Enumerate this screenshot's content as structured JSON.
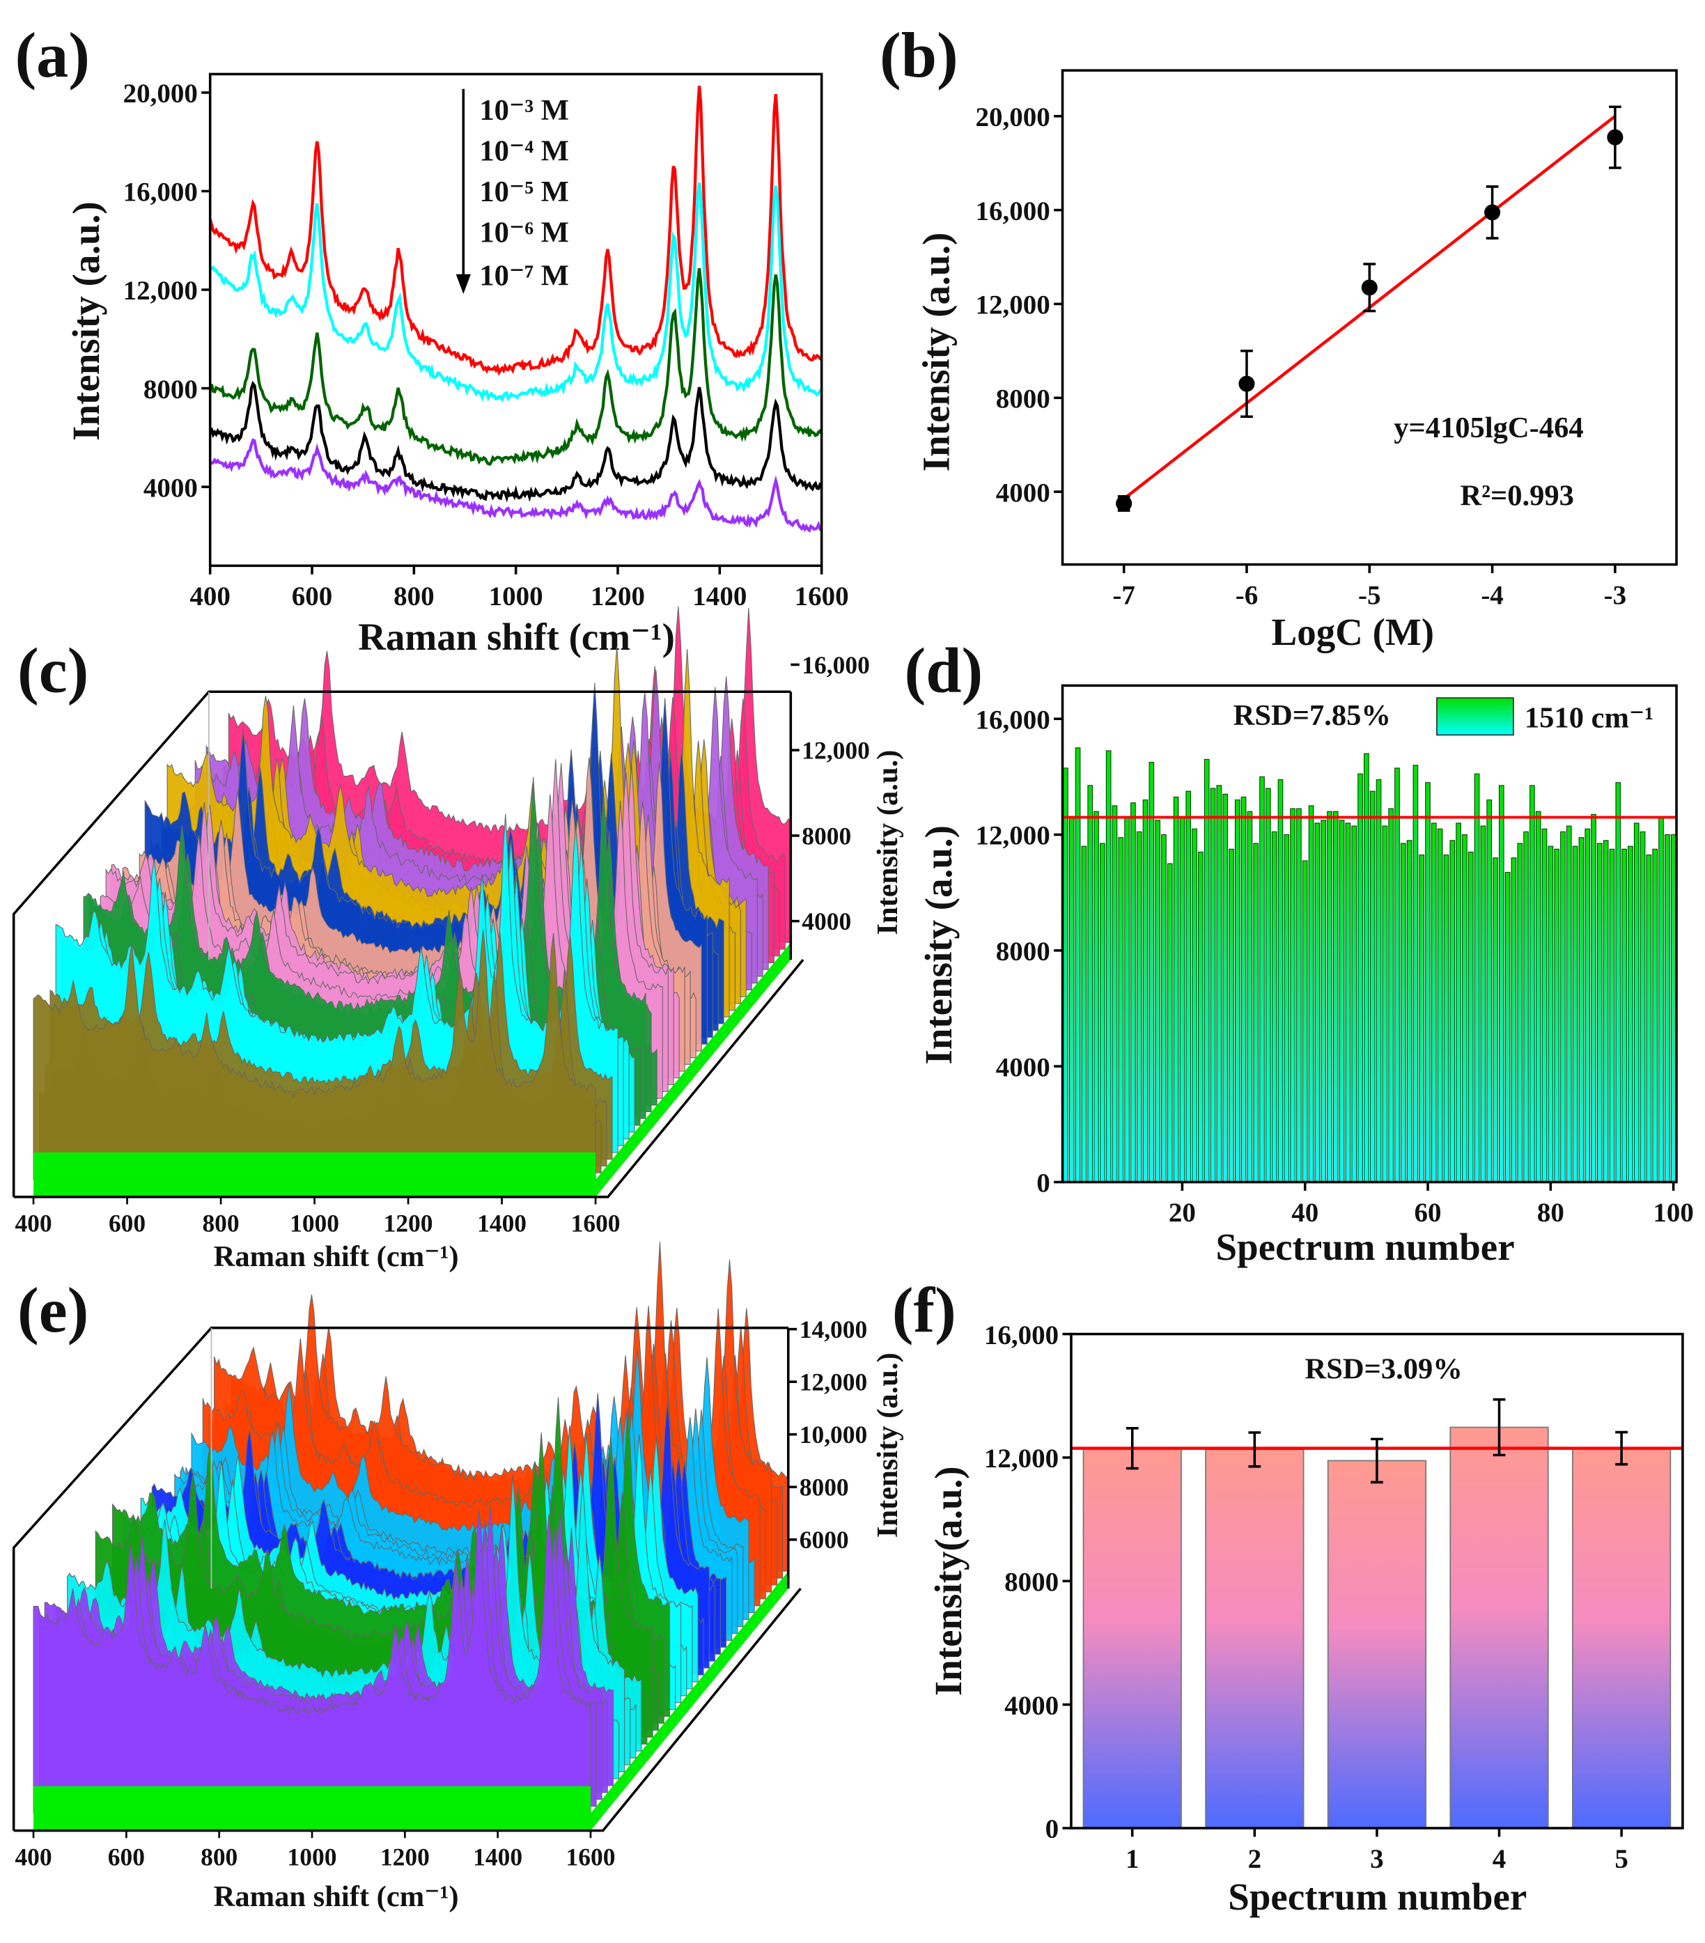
{
  "panels": {
    "a": {
      "label": "(a)"
    },
    "b": {
      "label": "(b)"
    },
    "c": {
      "label": "(c)"
    },
    "d": {
      "label": "(d)"
    },
    "e": {
      "label": "(e)"
    },
    "f": {
      "label": "(f)"
    }
  },
  "chart_data": [
    {
      "id": "a",
      "type": "line",
      "xlabel": "Raman shift (cm⁻¹)",
      "ylabel": "Intensity (a.u.)",
      "xlim": [
        400,
        1600
      ],
      "ylim": [
        800,
        20750
      ],
      "xticks": [
        400,
        600,
        800,
        1000,
        1200,
        1400,
        1600
      ],
      "xtick_labels": [
        "400",
        "600",
        "800",
        "1000",
        "1200",
        "1400",
        "1600"
      ],
      "yticks": [
        4000,
        8000,
        12000,
        16000,
        20000
      ],
      "ytick_labels": [
        "4000",
        "8000",
        "12,000",
        "16,000",
        "20,000"
      ],
      "legend": [
        "10⁻³ M",
        "10⁻⁴ M",
        "10⁻⁵ M",
        "10⁻⁶ M",
        "10⁻⁷ M"
      ],
      "legend_placement": "top-center with downward arrow",
      "peak_centers": [
        485,
        560,
        610,
        705,
        770,
        1120,
        1180,
        1310,
        1360,
        1510
      ],
      "baseline_x": [
        400,
        500,
        650,
        800,
        950,
        1100,
        1250,
        1450,
        1600
      ],
      "series": [
        {
          "name": "10⁻³ M",
          "color": "#ff0000",
          "baseline": [
            14500,
            12500,
            11000,
            10000,
            8700,
            9000,
            9100,
            8900,
            9000
          ],
          "peak_heights": [
            2500,
            1200,
            6500,
            1300,
            3300,
            1200,
            4300,
            7500,
            10800,
            10800
          ]
        },
        {
          "name": "10⁻⁴ M",
          "color": "#00ffff",
          "baseline": [
            12800,
            11000,
            9800,
            8800,
            7600,
            7900,
            8000,
            7700,
            7700
          ],
          "peak_heights": [
            2100,
            800,
            5200,
            1000,
            2600,
            800,
            3300,
            6000,
            8200,
            8600
          ]
        },
        {
          "name": "10⁻⁵ M",
          "color": "#006400",
          "baseline": [
            8000,
            7000,
            6400,
            5800,
            5000,
            5400,
            5800,
            5800,
            6000
          ],
          "peak_heights": [
            2500,
            600,
            3500,
            1000,
            2000,
            900,
            2800,
            5000,
            6700,
            6800
          ]
        },
        {
          "name": "10⁻⁶ M",
          "color": "#000000",
          "baseline": [
            6200,
            5300,
            4600,
            4100,
            3600,
            3800,
            4100,
            4000,
            3900
          ],
          "peak_heights": [
            2800,
            300,
            2500,
            1500,
            1100,
            500,
            1500,
            2500,
            3800,
            3500
          ]
        },
        {
          "name": "10⁻⁷ M",
          "color": "#9b30ff",
          "baseline": [
            5000,
            4500,
            4100,
            3700,
            3000,
            2900,
            2800,
            2500,
            2300
          ],
          "peak_heights": [
            1200,
            200,
            1200,
            400,
            500,
            300,
            600,
            1000,
            1500,
            1700
          ]
        }
      ]
    },
    {
      "id": "b",
      "type": "scatter",
      "xlabel": "LogC (M)",
      "ylabel": "Intensity (a.u.)",
      "xlim": [
        -7.5,
        -2.5
      ],
      "ylim": [
        900,
        21950
      ],
      "xticks": [
        -7,
        -6,
        -5,
        -4,
        -3
      ],
      "xtick_labels": [
        "-7",
        "-6",
        "-5",
        "-4",
        "-3"
      ],
      "yticks": [
        4000,
        8000,
        12000,
        16000,
        20000
      ],
      "ytick_labels": [
        "4000",
        "8000",
        "12,000",
        "16,000",
        "20,000"
      ],
      "x": [
        -7,
        -6,
        -5,
        -4,
        -3
      ],
      "y": [
        3500,
        8600,
        12700,
        15900,
        19100
      ],
      "yerr": [
        300,
        1400,
        1000,
        1100,
        1300
      ],
      "fit_line": {
        "x": [
          -7,
          -3
        ],
        "y": [
          3700,
          20000
        ],
        "color": "#ff0000"
      },
      "equation": "y=4105lgC-464",
      "r_squared": "R²=0.993"
    },
    {
      "id": "c",
      "type": "3d-waterfall",
      "xlabel": "Raman shift (cm⁻¹)",
      "zlabel": "Intensity (a.u.)",
      "xlim": [
        400,
        1600
      ],
      "zlim": [
        3000,
        16000
      ],
      "xticks": [
        400,
        600,
        800,
        1000,
        1200,
        1400,
        1600
      ],
      "xtick_labels": [
        "400",
        "600",
        "800",
        "1000",
        "1200",
        "1400",
        "1600"
      ],
      "zticks": [
        4000,
        8000,
        12000,
        16000
      ],
      "ztick_labels": [
        "4000",
        "8000",
        "12,000",
        "16,000"
      ],
      "colors": [
        "#8a7a20",
        "#00ffff",
        "#1a9a3a",
        "#f08cd0",
        "#f0a090",
        "#0a40c0",
        "#e0b000",
        "#b060e0",
        "#ff2a80"
      ]
    },
    {
      "id": "d",
      "type": "bar",
      "xlabel": "Spectrum number",
      "ylabel": "Intensity (a.u.)",
      "xlim": [
        0.5,
        100.5
      ],
      "ylim": [
        0,
        17150
      ],
      "xticks": [
        20,
        40,
        60,
        80,
        100
      ],
      "xtick_labels": [
        "20",
        "40",
        "60",
        "80",
        "100"
      ],
      "yticks": [
        0,
        4000,
        8000,
        12000,
        16000
      ],
      "ytick_labels": [
        "0",
        "4000",
        "8000",
        "12,000",
        "16,000"
      ],
      "legend": "1510 cm⁻¹",
      "legend_placement": "top-right",
      "annotation": "RSD=7.85%",
      "mean_line": 12600,
      "values": [
        14300,
        12600,
        15000,
        11600,
        13700,
        12800,
        11700,
        14900,
        13000,
        11900,
        12600,
        13100,
        12100,
        13200,
        14500,
        12500,
        12000,
        11000,
        13300,
        12600,
        13500,
        12200,
        11400,
        14600,
        13600,
        13700,
        13400,
        11500,
        13200,
        13300,
        12800,
        11700,
        14000,
        13600,
        12100,
        13900,
        12000,
        12900,
        12900,
        11100,
        13000,
        12400,
        12500,
        12800,
        12800,
        12500,
        12400,
        12300,
        14100,
        14800,
        13500,
        13900,
        12300,
        12900,
        14300,
        11700,
        11800,
        14400,
        11300,
        13800,
        12400,
        12200,
        11300,
        11800,
        12400,
        12000,
        11400,
        14100,
        12300,
        13200,
        11200,
        13700,
        10700,
        11200,
        11700,
        12100,
        13700,
        12800,
        12200,
        11600,
        11500,
        12100,
        12300,
        11600,
        11900,
        12200,
        12700,
        11700,
        11800,
        11500,
        13800,
        11500,
        11600,
        12400,
        12100,
        11300,
        11500,
        12600,
        12000,
        12000
      ]
    },
    {
      "id": "e",
      "type": "3d-waterfall",
      "xlabel": "Raman shift (cm⁻¹)",
      "zlabel": "Intensity (a.u.)",
      "xlim": [
        400,
        1600
      ],
      "zlim": [
        4800,
        14000
      ],
      "xticks": [
        400,
        600,
        800,
        1000,
        1200,
        1400,
        1600
      ],
      "xtick_labels": [
        "400",
        "600",
        "800",
        "1000",
        "1200",
        "1400",
        "1600"
      ],
      "zticks": [
        6000,
        8000,
        10000,
        12000,
        14000
      ],
      "ztick_labels": [
        "6000",
        "8000",
        "10,000",
        "12,000",
        "14,000"
      ],
      "colors": [
        "#9040ff",
        "#00f0f0",
        "#10a010",
        "#00ffff",
        "#1030ff",
        "#00c0ff",
        "#ff4000"
      ]
    },
    {
      "id": "f",
      "type": "bar",
      "xlabel": "Spectrum number",
      "ylabel": "Intensity(a.u.)",
      "xlim": [
        0.5,
        5.5
      ],
      "ylim": [
        0,
        16000
      ],
      "xticks": [
        1,
        2,
        3,
        4,
        5
      ],
      "xtick_labels": [
        "1",
        "2",
        "3",
        "4",
        "5"
      ],
      "yticks": [
        0,
        4000,
        8000,
        12000,
        16000
      ],
      "ytick_labels": [
        "0",
        "4000",
        "8000",
        "12,000",
        "16,000"
      ],
      "annotation": "RSD=3.09%",
      "mean_line": 12300,
      "values": [
        12300,
        12260,
        11900,
        12980,
        12300
      ],
      "yerr": [
        650,
        550,
        700,
        900,
        520
      ]
    }
  ]
}
